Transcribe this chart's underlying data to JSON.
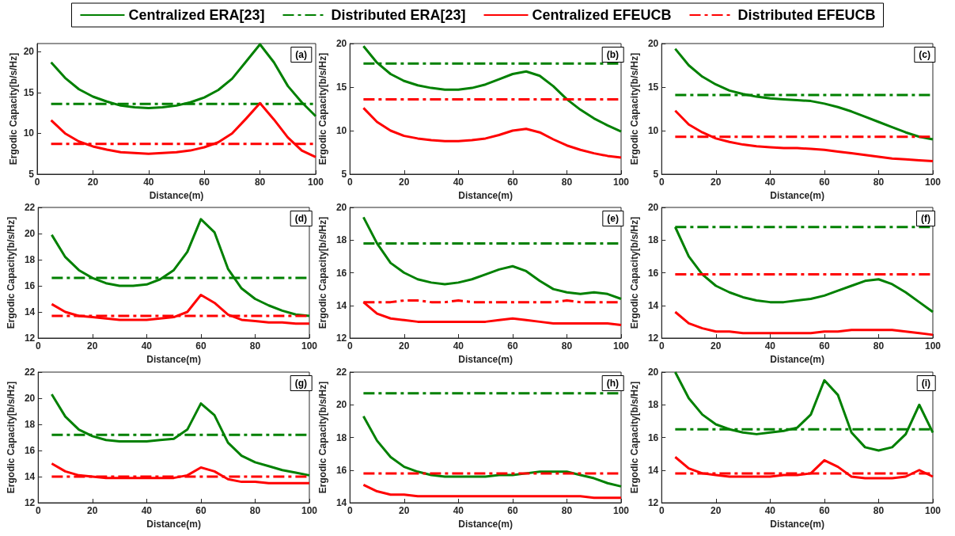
{
  "chart_data": [
    {
      "type": "line",
      "annotations": [
        "(a)"
      ],
      "xlabel": "Distance(m)",
      "ylabel": "Ergodic Capacity[b/s/Hz]",
      "x": [
        5,
        10,
        15,
        20,
        25,
        30,
        35,
        40,
        45,
        50,
        55,
        60,
        65,
        70,
        75,
        80,
        85,
        90,
        95,
        100
      ],
      "xlim": [
        0,
        100
      ],
      "xticks": [
        0,
        20,
        40,
        60,
        80,
        100
      ],
      "ylim": [
        5,
        21
      ],
      "yticks": [
        5,
        10,
        15,
        20
      ],
      "legend": "top",
      "grid": false,
      "marker": "none",
      "series": [
        {
          "name": "Centralized ERA[23]",
          "color": "#008000",
          "line_style": "solid",
          "values": [
            18.7,
            16.8,
            15.4,
            14.5,
            13.9,
            13.4,
            13.2,
            13.1,
            13.2,
            13.4,
            13.8,
            14.4,
            15.3,
            16.7,
            18.8,
            20.9,
            18.7,
            15.8,
            13.8,
            12.1
          ]
        },
        {
          "name": "Distributed ERA[23]",
          "color": "#008000",
          "line_style": "dashed",
          "values": [
            13.6,
            13.6,
            13.6,
            13.6,
            13.6,
            13.6,
            13.6,
            13.6,
            13.6,
            13.6,
            13.6,
            13.6,
            13.6,
            13.6,
            13.6,
            13.6,
            13.6,
            13.6,
            13.6,
            13.6
          ]
        },
        {
          "name": "Centralized EFEUCB",
          "color": "#ff0000",
          "line_style": "solid",
          "values": [
            11.6,
            10.0,
            9.0,
            8.4,
            8.0,
            7.7,
            7.6,
            7.5,
            7.6,
            7.7,
            7.9,
            8.3,
            8.9,
            10.0,
            11.8,
            13.7,
            11.7,
            9.5,
            7.9,
            7.1
          ]
        },
        {
          "name": "Distributed EFEUCB",
          "color": "#ff0000",
          "line_style": "dashed",
          "values": [
            8.7,
            8.7,
            8.7,
            8.7,
            8.7,
            8.7,
            8.7,
            8.7,
            8.7,
            8.7,
            8.7,
            8.7,
            8.7,
            8.7,
            8.7,
            8.7,
            8.7,
            8.7,
            8.7,
            8.7
          ]
        }
      ]
    },
    {
      "type": "line",
      "annotations": [
        "(b)"
      ],
      "xlabel": "Distance(m)",
      "ylabel": "Ergodic Capacity[b/s/Hz]",
      "x": [
        5,
        10,
        15,
        20,
        25,
        30,
        35,
        40,
        45,
        50,
        55,
        60,
        65,
        70,
        75,
        80,
        85,
        90,
        95,
        100
      ],
      "xlim": [
        0,
        100
      ],
      "xticks": [
        0,
        20,
        40,
        60,
        80,
        100
      ],
      "ylim": [
        5,
        20
      ],
      "yticks": [
        5,
        10,
        15,
        20
      ],
      "grid": false,
      "marker": "none",
      "series": [
        {
          "color": "#008000",
          "line_style": "solid",
          "values": [
            19.7,
            17.8,
            16.5,
            15.7,
            15.2,
            14.9,
            14.7,
            14.7,
            14.9,
            15.3,
            15.9,
            16.5,
            16.8,
            16.3,
            15.1,
            13.6,
            12.4,
            11.4,
            10.6,
            9.9
          ]
        },
        {
          "color": "#008000",
          "line_style": "dashed",
          "values": [
            17.7,
            17.7,
            17.7,
            17.7,
            17.7,
            17.7,
            17.7,
            17.7,
            17.7,
            17.7,
            17.7,
            17.7,
            17.7,
            17.7,
            17.7,
            17.7,
            17.7,
            17.7,
            17.7,
            17.7
          ]
        },
        {
          "color": "#ff0000",
          "line_style": "solid",
          "values": [
            12.6,
            11.0,
            10.0,
            9.4,
            9.1,
            8.9,
            8.8,
            8.8,
            8.9,
            9.1,
            9.5,
            10.0,
            10.2,
            9.8,
            9.0,
            8.3,
            7.8,
            7.4,
            7.1,
            6.9
          ]
        },
        {
          "color": "#ff0000",
          "line_style": "dashed",
          "values": [
            13.6,
            13.6,
            13.6,
            13.6,
            13.6,
            13.6,
            13.6,
            13.6,
            13.6,
            13.6,
            13.6,
            13.6,
            13.6,
            13.6,
            13.6,
            13.6,
            13.6,
            13.6,
            13.6,
            13.6
          ]
        }
      ]
    },
    {
      "type": "line",
      "annotations": [
        "(c)"
      ],
      "xlabel": "Distance(m)",
      "ylabel": "Ergodic Capacity[b/s/Hz]",
      "x": [
        5,
        10,
        15,
        20,
        25,
        30,
        35,
        40,
        45,
        50,
        55,
        60,
        65,
        70,
        75,
        80,
        85,
        90,
        95,
        100
      ],
      "xlim": [
        0,
        100
      ],
      "xticks": [
        0,
        20,
        40,
        60,
        80,
        100
      ],
      "ylim": [
        5,
        20
      ],
      "yticks": [
        5,
        10,
        15,
        20
      ],
      "grid": false,
      "marker": "none",
      "series": [
        {
          "color": "#008000",
          "line_style": "solid",
          "values": [
            19.4,
            17.5,
            16.2,
            15.3,
            14.6,
            14.2,
            13.9,
            13.7,
            13.6,
            13.5,
            13.4,
            13.1,
            12.7,
            12.2,
            11.6,
            11.0,
            10.4,
            9.8,
            9.3,
            9.0
          ]
        },
        {
          "color": "#008000",
          "line_style": "dashed",
          "values": [
            14.1,
            14.1,
            14.1,
            14.1,
            14.1,
            14.1,
            14.1,
            14.1,
            14.1,
            14.1,
            14.1,
            14.1,
            14.1,
            14.1,
            14.1,
            14.1,
            14.1,
            14.1,
            14.1,
            14.1
          ]
        },
        {
          "color": "#ff0000",
          "line_style": "solid",
          "values": [
            12.3,
            10.7,
            9.8,
            9.1,
            8.7,
            8.4,
            8.2,
            8.1,
            8.0,
            8.0,
            7.9,
            7.8,
            7.6,
            7.4,
            7.2,
            7.0,
            6.8,
            6.7,
            6.6,
            6.5
          ]
        },
        {
          "color": "#ff0000",
          "line_style": "dashed",
          "values": [
            9.3,
            9.3,
            9.3,
            9.3,
            9.3,
            9.3,
            9.3,
            9.3,
            9.3,
            9.3,
            9.3,
            9.3,
            9.3,
            9.3,
            9.3,
            9.3,
            9.3,
            9.3,
            9.3,
            9.3
          ]
        }
      ]
    },
    {
      "type": "line",
      "annotations": [
        "(d)"
      ],
      "xlabel": "Distance(m)",
      "ylabel": "Ergodic Capacity[b/s/Hz]",
      "x": [
        5,
        10,
        15,
        20,
        25,
        30,
        35,
        40,
        45,
        50,
        55,
        60,
        65,
        70,
        75,
        80,
        85,
        90,
        95,
        100
      ],
      "xlim": [
        0,
        100
      ],
      "xticks": [
        0,
        20,
        40,
        60,
        80,
        100
      ],
      "ylim": [
        12,
        22
      ],
      "yticks": [
        12,
        14,
        16,
        18,
        20,
        22
      ],
      "grid": false,
      "marker": "none",
      "series": [
        {
          "color": "#008000",
          "line_style": "solid",
          "values": [
            19.9,
            18.2,
            17.2,
            16.6,
            16.2,
            16.0,
            16.0,
            16.1,
            16.5,
            17.2,
            18.6,
            21.1,
            20.1,
            17.3,
            15.8,
            15.0,
            14.5,
            14.1,
            13.8,
            13.7
          ]
        },
        {
          "color": "#008000",
          "line_style": "dashed",
          "values": [
            16.6,
            16.6,
            16.6,
            16.6,
            16.6,
            16.6,
            16.6,
            16.6,
            16.6,
            16.6,
            16.6,
            16.6,
            16.6,
            16.6,
            16.6,
            16.6,
            16.6,
            16.6,
            16.6,
            16.6
          ]
        },
        {
          "color": "#ff0000",
          "line_style": "solid",
          "values": [
            14.6,
            14.0,
            13.7,
            13.6,
            13.5,
            13.4,
            13.4,
            13.4,
            13.5,
            13.6,
            14.0,
            15.3,
            14.7,
            13.8,
            13.4,
            13.3,
            13.2,
            13.2,
            13.1,
            13.1
          ]
        },
        {
          "color": "#ff0000",
          "line_style": "dashed",
          "values": [
            13.7,
            13.7,
            13.7,
            13.7,
            13.7,
            13.7,
            13.7,
            13.7,
            13.7,
            13.7,
            13.7,
            13.7,
            13.7,
            13.7,
            13.7,
            13.7,
            13.7,
            13.7,
            13.7,
            13.7
          ]
        }
      ]
    },
    {
      "type": "line",
      "annotations": [
        "(e)"
      ],
      "xlabel": "Distance(m)",
      "ylabel": "Ergodic Capacity[b/s/Hz]",
      "x": [
        5,
        10,
        15,
        20,
        25,
        30,
        35,
        40,
        45,
        50,
        55,
        60,
        65,
        70,
        75,
        80,
        85,
        90,
        95,
        100
      ],
      "xlim": [
        0,
        100
      ],
      "xticks": [
        0,
        20,
        40,
        60,
        80,
        100
      ],
      "ylim": [
        12,
        20
      ],
      "yticks": [
        12,
        14,
        16,
        18,
        20
      ],
      "grid": false,
      "marker": "none",
      "series": [
        {
          "color": "#008000",
          "line_style": "solid",
          "values": [
            19.4,
            17.8,
            16.6,
            16.0,
            15.6,
            15.4,
            15.3,
            15.4,
            15.6,
            15.9,
            16.2,
            16.4,
            16.1,
            15.5,
            15.0,
            14.8,
            14.7,
            14.8,
            14.7,
            14.4
          ]
        },
        {
          "color": "#008000",
          "line_style": "dashed",
          "values": [
            17.8,
            17.8,
            17.8,
            17.8,
            17.8,
            17.8,
            17.8,
            17.8,
            17.8,
            17.8,
            17.8,
            17.8,
            17.8,
            17.8,
            17.8,
            17.8,
            17.8,
            17.8,
            17.8,
            17.8
          ]
        },
        {
          "color": "#ff0000",
          "line_style": "solid",
          "values": [
            14.2,
            13.5,
            13.2,
            13.1,
            13.0,
            13.0,
            13.0,
            13.0,
            13.0,
            13.0,
            13.1,
            13.2,
            13.1,
            13.0,
            12.9,
            12.9,
            12.9,
            12.9,
            12.9,
            12.8
          ]
        },
        {
          "color": "#ff0000",
          "line_style": "dashed",
          "values": [
            14.2,
            14.2,
            14.2,
            14.3,
            14.3,
            14.2,
            14.2,
            14.3,
            14.2,
            14.2,
            14.2,
            14.2,
            14.2,
            14.2,
            14.2,
            14.3,
            14.2,
            14.2,
            14.2,
            14.2
          ]
        }
      ]
    },
    {
      "type": "line",
      "annotations": [
        "(f)"
      ],
      "xlabel": "Distance(m)",
      "ylabel": "Ergodic Capacity[b/s/Hz]",
      "x": [
        5,
        10,
        15,
        20,
        25,
        30,
        35,
        40,
        45,
        50,
        55,
        60,
        65,
        70,
        75,
        80,
        85,
        90,
        95,
        100
      ],
      "xlim": [
        0,
        100
      ],
      "xticks": [
        0,
        20,
        40,
        60,
        80,
        100
      ],
      "ylim": [
        12,
        20
      ],
      "yticks": [
        12,
        14,
        16,
        18,
        20
      ],
      "grid": false,
      "marker": "none",
      "series": [
        {
          "color": "#008000",
          "line_style": "solid",
          "values": [
            18.8,
            17.0,
            15.9,
            15.2,
            14.8,
            14.5,
            14.3,
            14.2,
            14.2,
            14.3,
            14.4,
            14.6,
            14.9,
            15.2,
            15.5,
            15.6,
            15.3,
            14.8,
            14.2,
            13.6
          ]
        },
        {
          "color": "#008000",
          "line_style": "dashed",
          "values": [
            18.8,
            18.8,
            18.8,
            18.8,
            18.8,
            18.8,
            18.8,
            18.8,
            18.8,
            18.8,
            18.8,
            18.8,
            18.8,
            18.8,
            18.8,
            18.8,
            18.8,
            18.8,
            18.8,
            18.8
          ]
        },
        {
          "color": "#ff0000",
          "line_style": "solid",
          "values": [
            13.6,
            12.9,
            12.6,
            12.4,
            12.4,
            12.3,
            12.3,
            12.3,
            12.3,
            12.3,
            12.3,
            12.4,
            12.4,
            12.5,
            12.5,
            12.5,
            12.5,
            12.4,
            12.3,
            12.2
          ]
        },
        {
          "color": "#ff0000",
          "line_style": "dashed",
          "values": [
            15.9,
            15.9,
            15.9,
            15.9,
            15.9,
            15.9,
            15.9,
            15.9,
            15.9,
            15.9,
            15.9,
            15.9,
            15.9,
            15.9,
            15.9,
            15.9,
            15.9,
            15.9,
            15.9,
            15.9
          ]
        }
      ]
    },
    {
      "type": "line",
      "annotations": [
        "(g)"
      ],
      "xlabel": "Distance(m)",
      "ylabel": "Ergodic Capacity[b/s/Hz]",
      "x": [
        5,
        10,
        15,
        20,
        25,
        30,
        35,
        40,
        45,
        50,
        55,
        60,
        65,
        70,
        75,
        80,
        85,
        90,
        95,
        100
      ],
      "xlim": [
        0,
        100
      ],
      "xticks": [
        0,
        20,
        40,
        60,
        80,
        100
      ],
      "ylim": [
        12,
        22
      ],
      "yticks": [
        12,
        14,
        16,
        18,
        20,
        22
      ],
      "grid": false,
      "marker": "none",
      "series": [
        {
          "color": "#008000",
          "line_style": "solid",
          "values": [
            20.3,
            18.6,
            17.6,
            17.1,
            16.8,
            16.7,
            16.7,
            16.7,
            16.8,
            16.9,
            17.6,
            19.6,
            18.7,
            16.6,
            15.6,
            15.1,
            14.8,
            14.5,
            14.3,
            14.1
          ]
        },
        {
          "color": "#008000",
          "line_style": "dashed",
          "values": [
            17.2,
            17.2,
            17.2,
            17.2,
            17.2,
            17.2,
            17.2,
            17.2,
            17.2,
            17.2,
            17.2,
            17.2,
            17.2,
            17.2,
            17.2,
            17.2,
            17.2,
            17.2,
            17.2,
            17.2
          ]
        },
        {
          "color": "#ff0000",
          "line_style": "solid",
          "values": [
            15.0,
            14.4,
            14.1,
            14.0,
            13.9,
            13.9,
            13.9,
            13.9,
            13.9,
            13.9,
            14.1,
            14.7,
            14.4,
            13.8,
            13.6,
            13.6,
            13.5,
            13.5,
            13.5,
            13.5
          ]
        },
        {
          "color": "#ff0000",
          "line_style": "dashed",
          "values": [
            14.0,
            14.0,
            14.0,
            14.0,
            14.0,
            14.0,
            14.0,
            14.0,
            14.0,
            14.0,
            14.0,
            14.0,
            14.0,
            14.0,
            14.0,
            14.0,
            14.0,
            14.0,
            14.0,
            14.0
          ]
        }
      ]
    },
    {
      "type": "line",
      "annotations": [
        "(h)"
      ],
      "xlabel": "Distance(m)",
      "ylabel": "Ergodic Capacity[b/s/Hz]",
      "x": [
        5,
        10,
        15,
        20,
        25,
        30,
        35,
        40,
        45,
        50,
        55,
        60,
        65,
        70,
        75,
        80,
        85,
        90,
        95,
        100
      ],
      "xlim": [
        0,
        100
      ],
      "xticks": [
        0,
        20,
        40,
        60,
        80,
        100
      ],
      "ylim": [
        14,
        22
      ],
      "yticks": [
        14,
        16,
        18,
        20,
        22
      ],
      "grid": false,
      "marker": "none",
      "series": [
        {
          "color": "#008000",
          "line_style": "solid",
          "values": [
            19.3,
            17.8,
            16.8,
            16.2,
            15.9,
            15.7,
            15.6,
            15.6,
            15.6,
            15.6,
            15.7,
            15.7,
            15.8,
            15.9,
            15.9,
            15.9,
            15.7,
            15.5,
            15.2,
            15.0
          ]
        },
        {
          "color": "#008000",
          "line_style": "dashed",
          "values": [
            20.7,
            20.7,
            20.7,
            20.7,
            20.7,
            20.7,
            20.7,
            20.7,
            20.7,
            20.7,
            20.7,
            20.7,
            20.7,
            20.7,
            20.7,
            20.7,
            20.7,
            20.7,
            20.7,
            20.7
          ]
        },
        {
          "color": "#ff0000",
          "line_style": "solid",
          "values": [
            15.1,
            14.7,
            14.5,
            14.5,
            14.4,
            14.4,
            14.4,
            14.4,
            14.4,
            14.4,
            14.4,
            14.4,
            14.4,
            14.4,
            14.4,
            14.4,
            14.4,
            14.3,
            14.3,
            14.3
          ]
        },
        {
          "color": "#ff0000",
          "line_style": "dashed",
          "values": [
            15.8,
            15.8,
            15.8,
            15.8,
            15.8,
            15.8,
            15.8,
            15.8,
            15.8,
            15.8,
            15.8,
            15.8,
            15.8,
            15.8,
            15.8,
            15.8,
            15.8,
            15.8,
            15.8,
            15.8
          ]
        }
      ]
    },
    {
      "type": "line",
      "annotations": [
        "(i)"
      ],
      "xlabel": "Distance(m)",
      "ylabel": "Ergodic Capacity[b/s/Hz]",
      "x": [
        5,
        10,
        15,
        20,
        25,
        30,
        35,
        40,
        45,
        50,
        55,
        60,
        65,
        70,
        75,
        80,
        85,
        90,
        95,
        100
      ],
      "xlim": [
        0,
        100
      ],
      "xticks": [
        0,
        20,
        40,
        60,
        80,
        100
      ],
      "ylim": [
        12,
        20
      ],
      "yticks": [
        12,
        14,
        16,
        18,
        20
      ],
      "grid": false,
      "marker": "none",
      "series": [
        {
          "color": "#008000",
          "line_style": "solid",
          "values": [
            20.0,
            18.4,
            17.4,
            16.8,
            16.5,
            16.3,
            16.2,
            16.3,
            16.4,
            16.6,
            17.4,
            19.5,
            18.6,
            16.3,
            15.4,
            15.2,
            15.4,
            16.2,
            18.0,
            16.3
          ]
        },
        {
          "color": "#008000",
          "line_style": "dashed",
          "values": [
            16.5,
            16.5,
            16.5,
            16.5,
            16.5,
            16.5,
            16.5,
            16.5,
            16.5,
            16.5,
            16.5,
            16.5,
            16.5,
            16.5,
            16.5,
            16.5,
            16.5,
            16.5,
            16.5,
            16.5
          ]
        },
        {
          "color": "#ff0000",
          "line_style": "solid",
          "values": [
            14.8,
            14.1,
            13.8,
            13.7,
            13.6,
            13.6,
            13.6,
            13.6,
            13.7,
            13.7,
            13.8,
            14.6,
            14.2,
            13.6,
            13.5,
            13.5,
            13.5,
            13.6,
            14.0,
            13.6
          ]
        },
        {
          "color": "#ff0000",
          "line_style": "dashed",
          "values": [
            13.8,
            13.8,
            13.8,
            13.8,
            13.8,
            13.8,
            13.8,
            13.8,
            13.8,
            13.8,
            13.8,
            13.8,
            13.8,
            13.8,
            13.8,
            13.8,
            13.8,
            13.8,
            13.8,
            13.8
          ]
        }
      ]
    }
  ]
}
